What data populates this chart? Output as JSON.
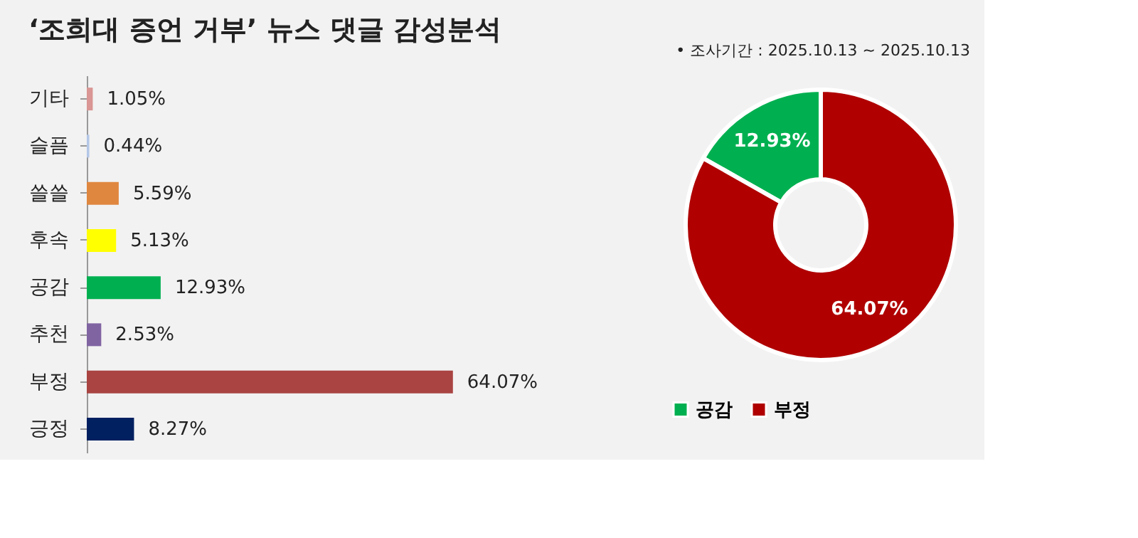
{
  "chart_data": [
    {
      "type": "bar",
      "title": "‘조희대 증언 거부’ 뉴스 댓글 감성분석",
      "orientation": "horizontal",
      "categories": [
        "기타",
        "슬픔",
        "쓸쓸",
        "후속",
        "공감",
        "추천",
        "부정",
        "긍정"
      ],
      "values": [
        1.05,
        0.44,
        5.59,
        5.13,
        12.93,
        2.53,
        64.07,
        8.27
      ],
      "colors": [
        "#d99694",
        "#b4c7e7",
        "#e0873f",
        "#ffff00",
        "#00b050",
        "#8064a2",
        "#a94442",
        "#002060"
      ],
      "value_labels": [
        "1.05%",
        "0.44%",
        "5.59%",
        "5.13%",
        "12.93%",
        "2.53%",
        "64.07%",
        "8.27%"
      ],
      "legend": false
    },
    {
      "type": "donut",
      "title": "•  조사기간 : 2025.10.13 ~ 2025.10.13",
      "categories": [
        "공감",
        "부정"
      ],
      "values": [
        12.93,
        64.07
      ],
      "colors": [
        "#00b050",
        "#b00000"
      ],
      "value_labels": [
        "12.93%",
        "64.07%"
      ],
      "legend": "bottom"
    }
  ]
}
